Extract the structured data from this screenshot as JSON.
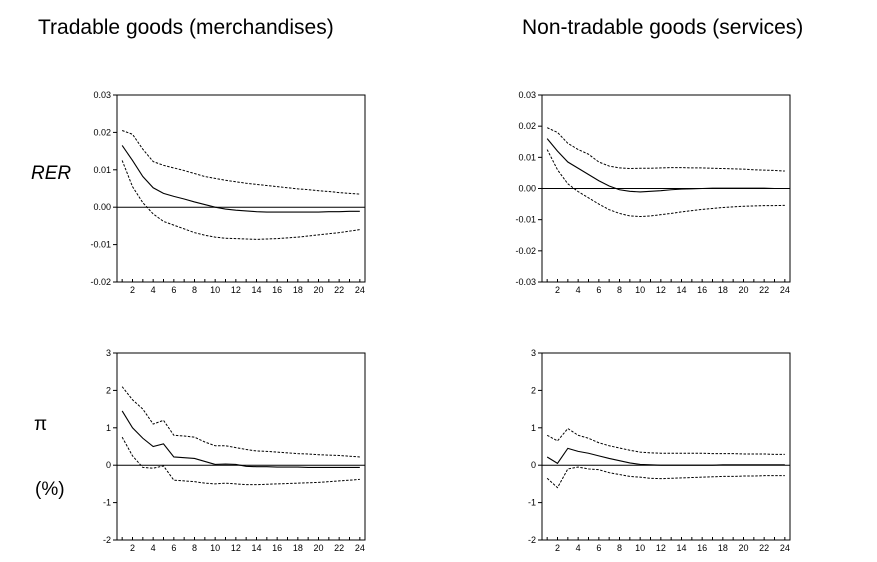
{
  "columns": [
    {
      "title": "Tradable goods (merchandises)"
    },
    {
      "title": "Non-tradable goods (services)"
    }
  ],
  "rows": [
    {
      "labels": [
        "RER"
      ]
    },
    {
      "labels": [
        "π",
        "(%)"
      ]
    }
  ],
  "colors": {
    "line": "#000000",
    "background": "#ffffff"
  },
  "chart_data": [
    {
      "type": "line",
      "xlim": [
        1,
        24
      ],
      "xticks": [
        2,
        4,
        6,
        8,
        10,
        12,
        14,
        16,
        18,
        20,
        22,
        24
      ],
      "ylim": [
        -0.02,
        0.03
      ],
      "yticks": [
        -0.02,
        -0.01,
        0.0,
        0.01,
        0.02,
        0.03
      ],
      "ytick_labels": [
        "-0.02",
        "-0.01",
        "0.00",
        "0.01",
        "0.02",
        "0.03"
      ],
      "zero_line": true,
      "x": [
        1,
        2,
        3,
        4,
        5,
        6,
        7,
        8,
        9,
        10,
        11,
        12,
        13,
        14,
        15,
        16,
        17,
        18,
        19,
        20,
        21,
        22,
        23,
        24
      ],
      "series": [
        {
          "style": "solid",
          "values": [
            0.0165,
            0.0125,
            0.0082,
            0.0052,
            0.0037,
            0.0029,
            0.0022,
            0.0014,
            0.0007,
            0.0,
            -0.0005,
            -0.0008,
            -0.001,
            -0.0012,
            -0.0013,
            -0.0013,
            -0.0013,
            -0.0013,
            -0.0013,
            -0.0013,
            -0.0012,
            -0.0012,
            -0.0011,
            -0.0011
          ]
        },
        {
          "style": "dashed",
          "values": [
            0.0205,
            0.0195,
            0.0155,
            0.0122,
            0.0112,
            0.0105,
            0.0098,
            0.009,
            0.0082,
            0.0077,
            0.0072,
            0.0068,
            0.0064,
            0.0061,
            0.0058,
            0.0055,
            0.0052,
            0.0049,
            0.0047,
            0.0044,
            0.0042,
            0.0039,
            0.0037,
            0.0035
          ]
        },
        {
          "style": "dashed",
          "values": [
            0.0125,
            0.0055,
            0.0012,
            -0.0018,
            -0.0038,
            -0.0048,
            -0.0058,
            -0.0068,
            -0.0075,
            -0.008,
            -0.0083,
            -0.0084,
            -0.0085,
            -0.0086,
            -0.0085,
            -0.0084,
            -0.0082,
            -0.008,
            -0.0077,
            -0.0074,
            -0.0071,
            -0.0068,
            -0.0064,
            -0.006
          ]
        }
      ]
    },
    {
      "type": "line",
      "xlim": [
        1,
        24
      ],
      "xticks": [
        2,
        4,
        6,
        8,
        10,
        12,
        14,
        16,
        18,
        20,
        22,
        24
      ],
      "ylim": [
        -0.03,
        0.03
      ],
      "yticks": [
        -0.03,
        -0.02,
        -0.01,
        0.0,
        0.01,
        0.02,
        0.03
      ],
      "ytick_labels": [
        "-0.03",
        "-0.02",
        "-0.01",
        "0.00",
        "0.01",
        "0.02",
        "0.03"
      ],
      "zero_line": true,
      "x": [
        1,
        2,
        3,
        4,
        5,
        6,
        7,
        8,
        9,
        10,
        11,
        12,
        13,
        14,
        15,
        16,
        17,
        18,
        19,
        20,
        21,
        22,
        23,
        24
      ],
      "series": [
        {
          "style": "solid",
          "values": [
            0.016,
            0.012,
            0.0085,
            0.0065,
            0.0045,
            0.0025,
            0.0008,
            -0.0004,
            -0.0009,
            -0.0011,
            -0.0009,
            -0.0007,
            -0.0004,
            -0.0002,
            -0.0001,
            0.0,
            0.0001,
            0.0001,
            0.0001,
            0.0001,
            0.0001,
            0.0001,
            0.0,
            0.0
          ]
        },
        {
          "style": "dashed",
          "values": [
            0.0195,
            0.018,
            0.0145,
            0.0125,
            0.011,
            0.0085,
            0.0072,
            0.0066,
            0.0064,
            0.0065,
            0.0065,
            0.0066,
            0.0067,
            0.0067,
            0.0066,
            0.0066,
            0.0065,
            0.0064,
            0.0063,
            0.0062,
            0.006,
            0.0059,
            0.0058,
            0.0056
          ]
        },
        {
          "style": "dashed",
          "values": [
            0.0125,
            0.006,
            0.0015,
            -0.001,
            -0.003,
            -0.005,
            -0.0068,
            -0.008,
            -0.0088,
            -0.009,
            -0.0088,
            -0.0084,
            -0.008,
            -0.0075,
            -0.0071,
            -0.0067,
            -0.0064,
            -0.0061,
            -0.0059,
            -0.0057,
            -0.0056,
            -0.0055,
            -0.0055,
            -0.0054
          ]
        }
      ]
    },
    {
      "type": "line",
      "xlim": [
        1,
        24
      ],
      "xticks": [
        2,
        4,
        6,
        8,
        10,
        12,
        14,
        16,
        18,
        20,
        22,
        24
      ],
      "ylim": [
        -2,
        3
      ],
      "yticks": [
        -2,
        -1,
        0,
        1,
        2,
        3
      ],
      "ytick_labels": [
        "-2",
        "-1",
        "0",
        "1",
        "2",
        "3"
      ],
      "zero_line": true,
      "x": [
        1,
        2,
        3,
        4,
        5,
        6,
        7,
        8,
        9,
        10,
        11,
        12,
        13,
        14,
        15,
        16,
        17,
        18,
        19,
        20,
        21,
        22,
        23,
        24
      ],
      "series": [
        {
          "style": "solid",
          "values": [
            1.45,
            1.0,
            0.72,
            0.5,
            0.57,
            0.22,
            0.2,
            0.18,
            0.1,
            0.02,
            0.03,
            0.02,
            -0.03,
            -0.04,
            -0.04,
            -0.05,
            -0.05,
            -0.05,
            -0.06,
            -0.06,
            -0.06,
            -0.06,
            -0.06,
            -0.06
          ]
        },
        {
          "style": "dashed",
          "values": [
            2.1,
            1.75,
            1.5,
            1.1,
            1.2,
            0.8,
            0.78,
            0.75,
            0.62,
            0.52,
            0.52,
            0.47,
            0.42,
            0.38,
            0.37,
            0.35,
            0.33,
            0.31,
            0.3,
            0.28,
            0.27,
            0.26,
            0.24,
            0.22
          ]
        },
        {
          "style": "dashed",
          "values": [
            0.75,
            0.25,
            -0.06,
            -0.08,
            -0.02,
            -0.4,
            -0.42,
            -0.44,
            -0.48,
            -0.5,
            -0.48,
            -0.5,
            -0.52,
            -0.52,
            -0.51,
            -0.5,
            -0.49,
            -0.48,
            -0.47,
            -0.46,
            -0.44,
            -0.42,
            -0.4,
            -0.38
          ]
        }
      ]
    },
    {
      "type": "line",
      "xlim": [
        1,
        24
      ],
      "xticks": [
        2,
        4,
        6,
        8,
        10,
        12,
        14,
        16,
        18,
        20,
        22,
        24
      ],
      "ylim": [
        -2,
        3
      ],
      "yticks": [
        -2,
        -1,
        0,
        1,
        2,
        3
      ],
      "ytick_labels": [
        "-2",
        "-1",
        "0",
        "1",
        "2",
        "3"
      ],
      "zero_line": true,
      "x": [
        1,
        2,
        3,
        4,
        5,
        6,
        7,
        8,
        9,
        10,
        11,
        12,
        13,
        14,
        15,
        16,
        17,
        18,
        19,
        20,
        21,
        22,
        23,
        24
      ],
      "series": [
        {
          "style": "solid",
          "values": [
            0.22,
            0.05,
            0.45,
            0.37,
            0.32,
            0.25,
            0.18,
            0.12,
            0.06,
            0.02,
            0.01,
            0.0,
            0.0,
            0.0,
            0.0,
            0.0,
            0.0,
            0.01,
            0.01,
            0.01,
            0.01,
            0.01,
            0.01,
            0.01
          ]
        },
        {
          "style": "dashed",
          "values": [
            0.8,
            0.65,
            0.98,
            0.8,
            0.72,
            0.6,
            0.52,
            0.46,
            0.4,
            0.35,
            0.33,
            0.32,
            0.32,
            0.32,
            0.32,
            0.32,
            0.31,
            0.31,
            0.31,
            0.3,
            0.3,
            0.3,
            0.29,
            0.29
          ]
        },
        {
          "style": "dashed",
          "values": [
            -0.35,
            -0.6,
            -0.1,
            -0.05,
            -0.1,
            -0.12,
            -0.2,
            -0.25,
            -0.3,
            -0.32,
            -0.35,
            -0.36,
            -0.35,
            -0.34,
            -0.33,
            -0.32,
            -0.31,
            -0.3,
            -0.3,
            -0.29,
            -0.29,
            -0.28,
            -0.28,
            -0.28
          ]
        }
      ]
    }
  ]
}
